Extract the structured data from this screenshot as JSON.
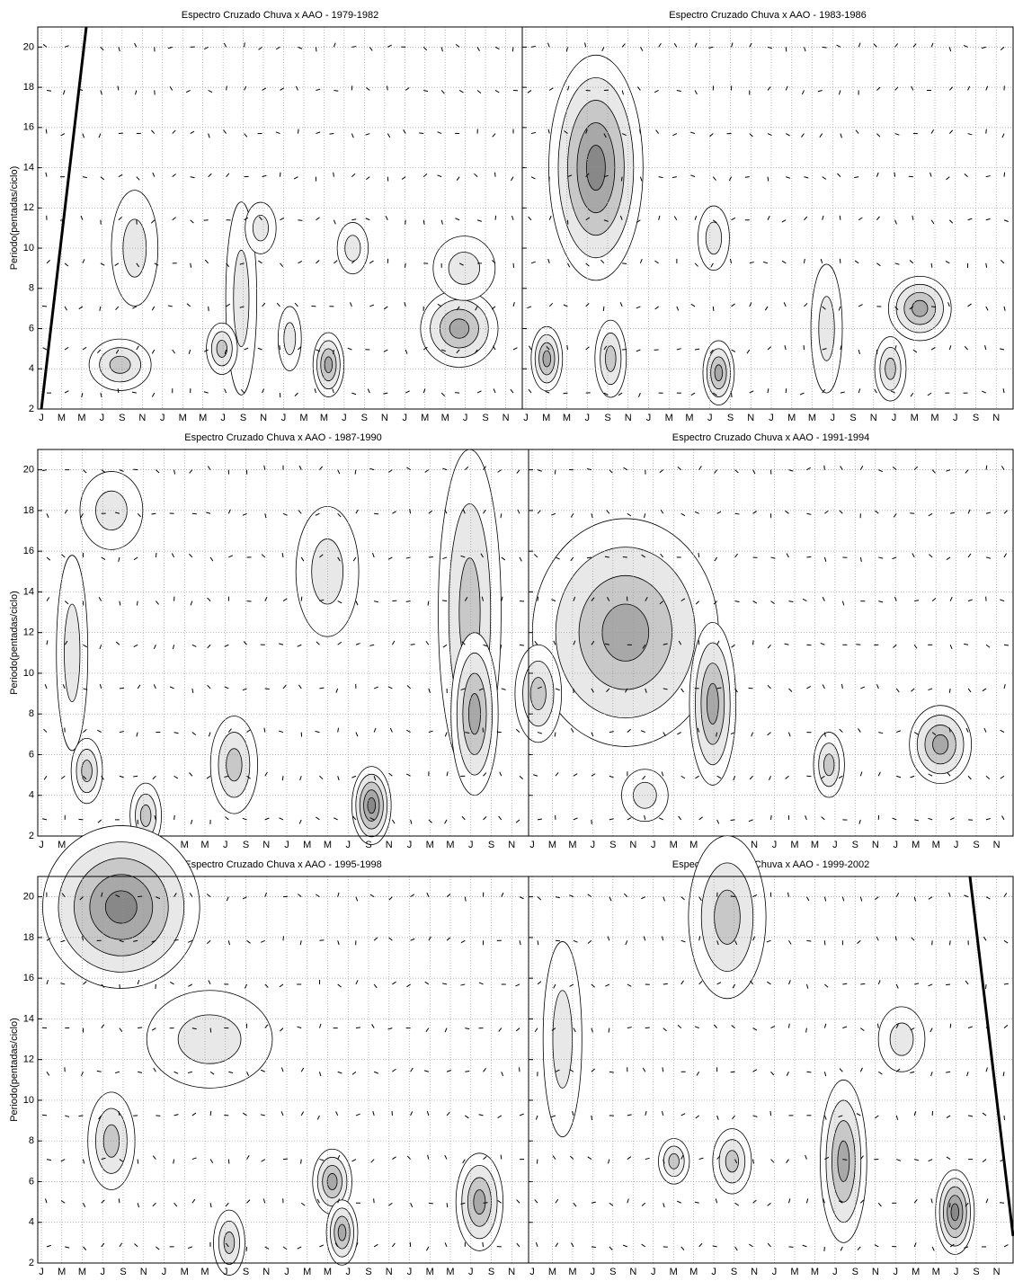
{
  "chart_data": [
    {
      "type": "contour",
      "title": "Espectro Cruzado Chuva x AAO - 1979-1982",
      "ylabel": "Periodo(pentadas/ciclo)",
      "categories": [
        "J",
        "M",
        "M",
        "J",
        "S",
        "N",
        "J",
        "M",
        "M",
        "J",
        "S",
        "N",
        "J",
        "M",
        "M",
        "J",
        "S",
        "N",
        "J",
        "M",
        "M",
        "J",
        "S",
        "N"
      ],
      "ylim": [
        2,
        21
      ],
      "yticks": [
        2,
        4,
        6,
        8,
        10,
        12,
        14,
        16,
        18,
        20
      ],
      "show_ytick_labels": true,
      "grid": true
    },
    {
      "type": "contour",
      "title": "Espectro Cruzado Chuva x AAO - 1983-1986",
      "categories": [
        "J",
        "M",
        "M",
        "J",
        "S",
        "N",
        "J",
        "M",
        "M",
        "J",
        "S",
        "N",
        "J",
        "M",
        "M",
        "J",
        "S",
        "N",
        "J",
        "M",
        "M",
        "J",
        "S",
        "N"
      ],
      "ylim": [
        2,
        21
      ],
      "yticks": [
        2,
        4,
        6,
        8,
        10,
        12,
        14,
        16,
        18,
        20
      ],
      "show_ytick_labels": false,
      "grid": true
    },
    {
      "type": "contour",
      "title": "Espectro Cruzado Chuva x AAO - 1987-1990",
      "ylabel": "Periodo(pentadas/ciclo)",
      "categories": [
        "J",
        "M",
        "M",
        "J",
        "S",
        "N",
        "J",
        "M",
        "M",
        "J",
        "S",
        "N",
        "J",
        "M",
        "M",
        "J",
        "S",
        "N",
        "J",
        "M",
        "M",
        "J",
        "S",
        "N"
      ],
      "ylim": [
        2,
        21
      ],
      "yticks": [
        2,
        4,
        6,
        8,
        10,
        12,
        14,
        16,
        18,
        20
      ],
      "show_ytick_labels": true,
      "grid": true
    },
    {
      "type": "contour",
      "title": "Espectro Cruzado Chuva x AAO - 1991-1994",
      "categories": [
        "J",
        "M",
        "M",
        "J",
        "S",
        "N",
        "J",
        "M",
        "M",
        "J",
        "S",
        "N",
        "J",
        "M",
        "M",
        "J",
        "S",
        "N",
        "J",
        "M",
        "M",
        "J",
        "S",
        "N"
      ],
      "ylim": [
        2,
        21
      ],
      "yticks": [
        2,
        4,
        6,
        8,
        10,
        12,
        14,
        16,
        18,
        20
      ],
      "show_ytick_labels": false,
      "grid": true
    },
    {
      "type": "contour",
      "title": "Espectro Cruzado Chuva x AAO - 1995-1998",
      "ylabel": "Periodo(pentadas/ciclo)",
      "categories": [
        "J",
        "M",
        "M",
        "J",
        "S",
        "N",
        "J",
        "M",
        "M",
        "J",
        "S",
        "N",
        "J",
        "M",
        "M",
        "J",
        "S",
        "N",
        "J",
        "M",
        "M",
        "J",
        "S",
        "N"
      ],
      "ylim": [
        2,
        21
      ],
      "yticks": [
        2,
        4,
        6,
        8,
        10,
        12,
        14,
        16,
        18,
        20
      ],
      "show_ytick_labels": true,
      "grid": true
    },
    {
      "type": "contour",
      "title": "Espectro Cruzado Chuva x AAO - 1999-2002",
      "categories": [
        "J",
        "M",
        "M",
        "J",
        "S",
        "N",
        "J",
        "M",
        "M",
        "J",
        "S",
        "N",
        "J",
        "M",
        "M",
        "J",
        "S",
        "N",
        "J",
        "M",
        "M",
        "J",
        "S",
        "N"
      ],
      "ylim": [
        2,
        21
      ],
      "yticks": [
        2,
        4,
        6,
        8,
        10,
        12,
        14,
        16,
        18,
        20
      ],
      "show_ytick_labels": false,
      "grid": true
    }
  ]
}
